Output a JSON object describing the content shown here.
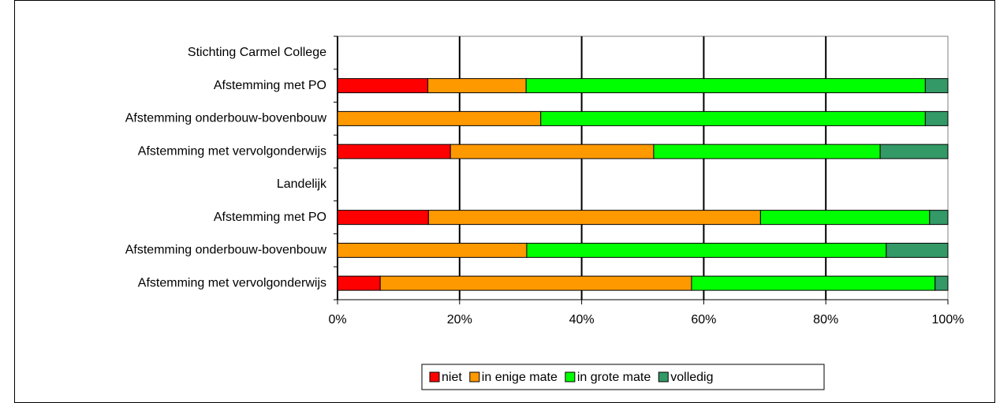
{
  "chart_data": {
    "type": "stacked-bar-horizontal",
    "categories": [
      "Stichting Carmel College",
      "Afstemming met PO",
      "Afstemming onderbouw-bovenbouw",
      "Afstemming met vervolgonderwijs",
      "Landelijk",
      "Afstemming met PO",
      "Afstemming onderbouw-bovenbouw",
      "Afstemming met vervolgonderwijs"
    ],
    "series": [
      {
        "name": "niet",
        "color": "#ff0000",
        "values": [
          null,
          14.8,
          0,
          18.5,
          null,
          14.9,
          0,
          7.0
        ]
      },
      {
        "name": "in enige mate",
        "color": "#ff9900",
        "values": [
          null,
          16.1,
          33.3,
          33.3,
          null,
          54.4,
          31.0,
          51.0
        ]
      },
      {
        "name": "in grote mate",
        "color": "#00ff00",
        "values": [
          null,
          65.4,
          63.0,
          37.1,
          null,
          27.7,
          58.9,
          39.9
        ]
      },
      {
        "name": "volledig",
        "color": "#339966",
        "values": [
          null,
          3.7,
          3.7,
          11.1,
          null,
          3.0,
          10.1,
          2.1
        ]
      }
    ],
    "xlim": [
      0,
      100
    ],
    "xticks": [
      {
        "value": 0,
        "label": "0%"
      },
      {
        "value": 20,
        "label": "20%"
      },
      {
        "value": 40,
        "label": "40%"
      },
      {
        "value": 60,
        "label": "60%"
      },
      {
        "value": 80,
        "label": "80%"
      },
      {
        "value": 100,
        "label": "100%"
      }
    ],
    "grid": true,
    "legend": "bottom"
  }
}
